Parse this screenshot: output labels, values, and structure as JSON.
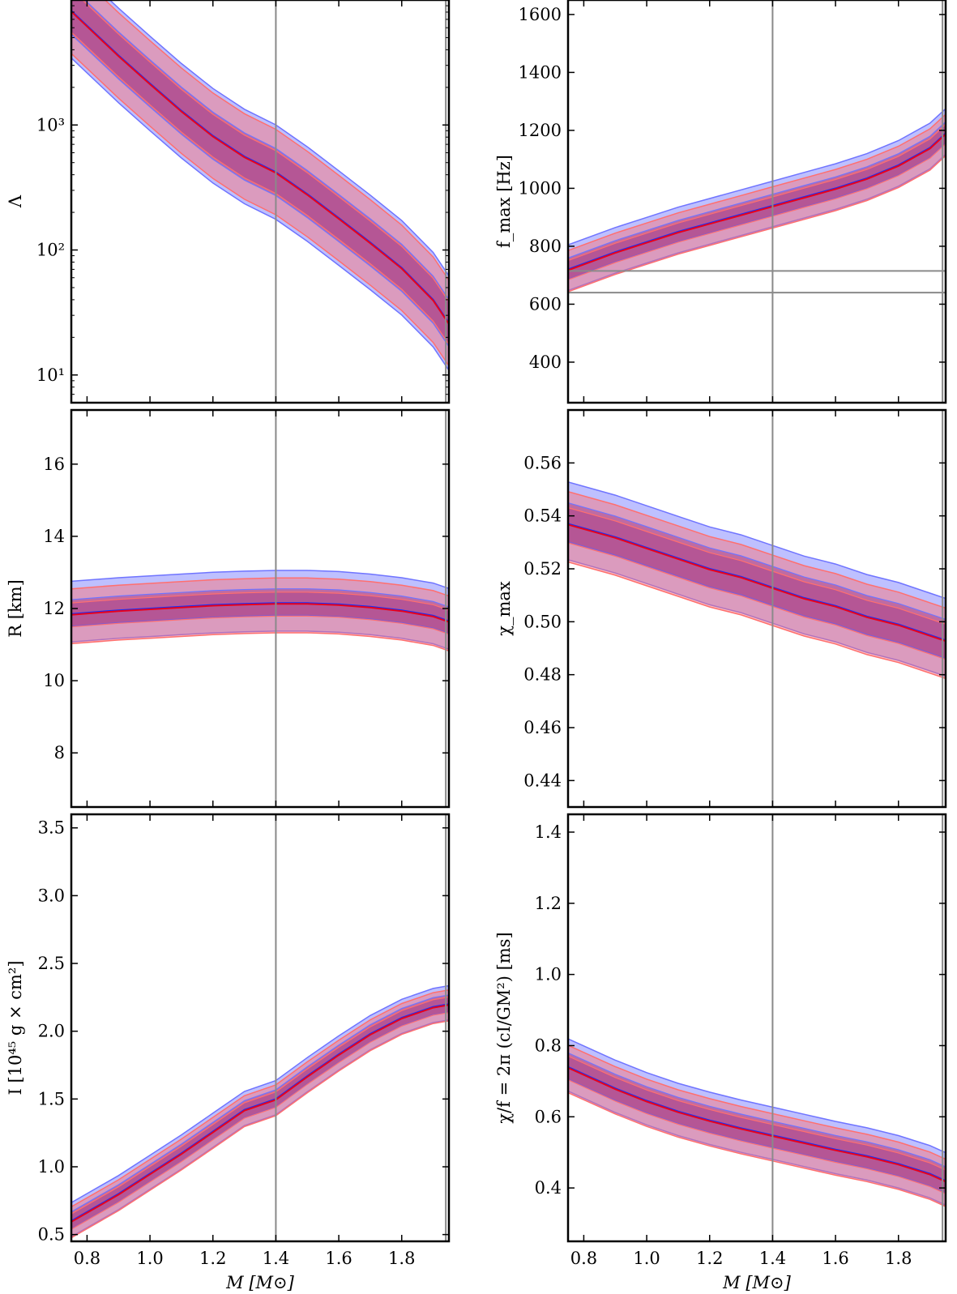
{
  "figure": {
    "colors": {
      "band_blue": "#6f74ff",
      "band_red": "#ff6f6f",
      "band_mix": "#a0307f",
      "line_red": "#e8001c",
      "line_blue": "#1030ff",
      "refline": "#8a8a8a"
    }
  },
  "chart_data": [
    {
      "id": "lambda",
      "type": "line",
      "scale": "log",
      "ylabel": "Λ",
      "xlabel": "",
      "xlim": [
        0.75,
        1.95
      ],
      "ylim": [
        6,
        10000
      ],
      "yticks": [
        10,
        100,
        1000
      ],
      "ytick_labels": [
        "10¹",
        "10²",
        "10³"
      ],
      "xticks": [
        0.8,
        1.0,
        1.2,
        1.4,
        1.6,
        1.8
      ],
      "xtick_labels": [],
      "vlines": [
        1.4,
        1.94
      ],
      "hlines": [],
      "series": [
        {
          "x": [
            0.75,
            0.9,
            1.0,
            1.1,
            1.2,
            1.3,
            1.4,
            1.5,
            1.6,
            1.7,
            1.8,
            1.9,
            1.95
          ],
          "values": [
            8200,
            3600,
            2150,
            1300,
            820,
            560,
            420,
            280,
            180,
            115,
            72,
            40,
            26
          ],
          "outer": [
            0.36,
            0.36
          ],
          "inner": [
            0.18,
            0.18
          ]
        }
      ]
    },
    {
      "id": "radius",
      "type": "line",
      "scale": "linear",
      "ylabel": "R [km]",
      "xlabel": "",
      "xlim": [
        0.75,
        1.95
      ],
      "ylim": [
        6.5,
        17.5
      ],
      "yticks": [
        8,
        10,
        12,
        14,
        16
      ],
      "ytick_labels": [
        "8",
        "10",
        "12",
        "14",
        "16"
      ],
      "xticks": [
        0.8,
        1.0,
        1.2,
        1.4,
        1.6,
        1.8
      ],
      "xtick_labels": [],
      "vlines": [
        1.4,
        1.94
      ],
      "hlines": [],
      "series": [
        {
          "x": [
            0.75,
            0.9,
            1.0,
            1.1,
            1.2,
            1.3,
            1.4,
            1.5,
            1.6,
            1.7,
            1.8,
            1.9,
            1.95
          ],
          "values": [
            11.85,
            11.95,
            12.0,
            12.05,
            12.1,
            12.13,
            12.15,
            12.15,
            12.12,
            12.05,
            11.95,
            11.8,
            11.65
          ],
          "outer": [
            0.8,
            0.8
          ],
          "inner": [
            0.35,
            0.35
          ]
        }
      ]
    },
    {
      "id": "inertia",
      "type": "line",
      "scale": "linear",
      "ylabel": "I [10⁴⁵ g × cm²]",
      "xlabel": "M [M⊙]",
      "xlim": [
        0.75,
        1.95
      ],
      "ylim": [
        0.45,
        3.6
      ],
      "yticks": [
        0.5,
        1.0,
        1.5,
        2.0,
        2.5,
        3.0,
        3.5
      ],
      "ytick_labels": [
        "0.5",
        "1.0",
        "1.5",
        "2.0",
        "2.5",
        "3.0",
        "3.5"
      ],
      "xticks": [
        0.8,
        1.0,
        1.2,
        1.4,
        1.6,
        1.8
      ],
      "xtick_labels": [
        "0.8",
        "1.0",
        "1.2",
        "1.4",
        "1.6",
        "1.8"
      ],
      "vlines": [
        1.4,
        1.94
      ],
      "hlines": [],
      "series": [
        {
          "x": [
            0.75,
            0.9,
            1.0,
            1.1,
            1.2,
            1.3,
            1.4,
            1.5,
            1.6,
            1.7,
            1.8,
            1.9,
            1.95
          ],
          "values": [
            0.6,
            0.8,
            0.95,
            1.1,
            1.26,
            1.42,
            1.5,
            1.67,
            1.83,
            1.98,
            2.1,
            2.18,
            2.2
          ],
          "outer": [
            0.12,
            0.12
          ],
          "inner": [
            0.06,
            0.06
          ]
        }
      ]
    },
    {
      "id": "fmax",
      "type": "line",
      "scale": "linear",
      "ylabel": "f_max [Hz]",
      "xlabel": "",
      "xlim": [
        0.75,
        1.95
      ],
      "ylim": [
        260,
        1650
      ],
      "yticks": [
        400,
        600,
        800,
        1000,
        1200,
        1400,
        1600
      ],
      "ytick_labels": [
        "400",
        "600",
        "800",
        "1000",
        "1200",
        "1400",
        "1600"
      ],
      "xticks": [
        0.8,
        1.0,
        1.2,
        1.4,
        1.6,
        1.8
      ],
      "xtick_labels": [],
      "vlines": [
        1.4,
        1.94
      ],
      "hlines": [
        640,
        715
      ],
      "series": [
        {
          "x": [
            0.75,
            0.9,
            1.0,
            1.1,
            1.2,
            1.3,
            1.4,
            1.5,
            1.6,
            1.7,
            1.8,
            1.9,
            1.95
          ],
          "values": [
            720,
            780,
            815,
            850,
            880,
            910,
            940,
            970,
            1000,
            1035,
            1080,
            1140,
            1190
          ],
          "outer": [
            75,
            75
          ],
          "inner": [
            35,
            35
          ]
        }
      ]
    },
    {
      "id": "chimax",
      "type": "line",
      "scale": "linear",
      "ylabel": "χ_max",
      "xlabel": "",
      "xlim": [
        0.75,
        1.95
      ],
      "ylim": [
        0.43,
        0.58
      ],
      "yticks": [
        0.44,
        0.46,
        0.48,
        0.5,
        0.52,
        0.54,
        0.56
      ],
      "ytick_labels": [
        "0.44",
        "0.46",
        "0.48",
        "0.50",
        "0.52",
        "0.54",
        "0.56"
      ],
      "xticks": [
        0.8,
        1.0,
        1.2,
        1.4,
        1.6,
        1.8
      ],
      "xtick_labels": [],
      "vlines": [
        1.4,
        1.94
      ],
      "hlines": [],
      "series": [
        {
          "x": [
            0.75,
            0.9,
            1.0,
            1.1,
            1.2,
            1.3,
            1.4,
            1.5,
            1.6,
            1.7,
            1.8,
            1.9,
            1.95
          ],
          "values": [
            0.537,
            0.532,
            0.528,
            0.524,
            0.52,
            0.517,
            0.513,
            0.509,
            0.506,
            0.502,
            0.499,
            0.495,
            0.493
          ],
          "outer": [
            0.014,
            0.014
          ],
          "inner": [
            0.007,
            0.007
          ]
        }
      ]
    },
    {
      "id": "chi_over_f",
      "type": "line",
      "scale": "linear",
      "ylabel": "χ/f = 2π (cI/GM²) [ms]",
      "xlabel": "M [M⊙]",
      "xlim": [
        0.75,
        1.95
      ],
      "ylim": [
        0.25,
        1.45
      ],
      "yticks": [
        0.4,
        0.6,
        0.8,
        1.0,
        1.2,
        1.4
      ],
      "ytick_labels": [
        "0.4",
        "0.6",
        "0.8",
        "1.0",
        "1.2",
        "1.4"
      ],
      "xticks": [
        0.8,
        1.0,
        1.2,
        1.4,
        1.6,
        1.8
      ],
      "xtick_labels": [
        "0.8",
        "1.0",
        "1.2",
        "1.4",
        "1.6",
        "1.8"
      ],
      "vlines": [
        1.4,
        1.94
      ],
      "hlines": [],
      "series": [
        {
          "x": [
            0.75,
            0.9,
            1.0,
            1.1,
            1.2,
            1.3,
            1.4,
            1.5,
            1.6,
            1.7,
            1.8,
            1.9,
            1.95
          ],
          "values": [
            0.74,
            0.68,
            0.645,
            0.615,
            0.59,
            0.568,
            0.548,
            0.528,
            0.508,
            0.49,
            0.468,
            0.44,
            0.42
          ],
          "outer": [
            0.07,
            0.07
          ],
          "inner": [
            0.035,
            0.035
          ]
        }
      ]
    }
  ]
}
